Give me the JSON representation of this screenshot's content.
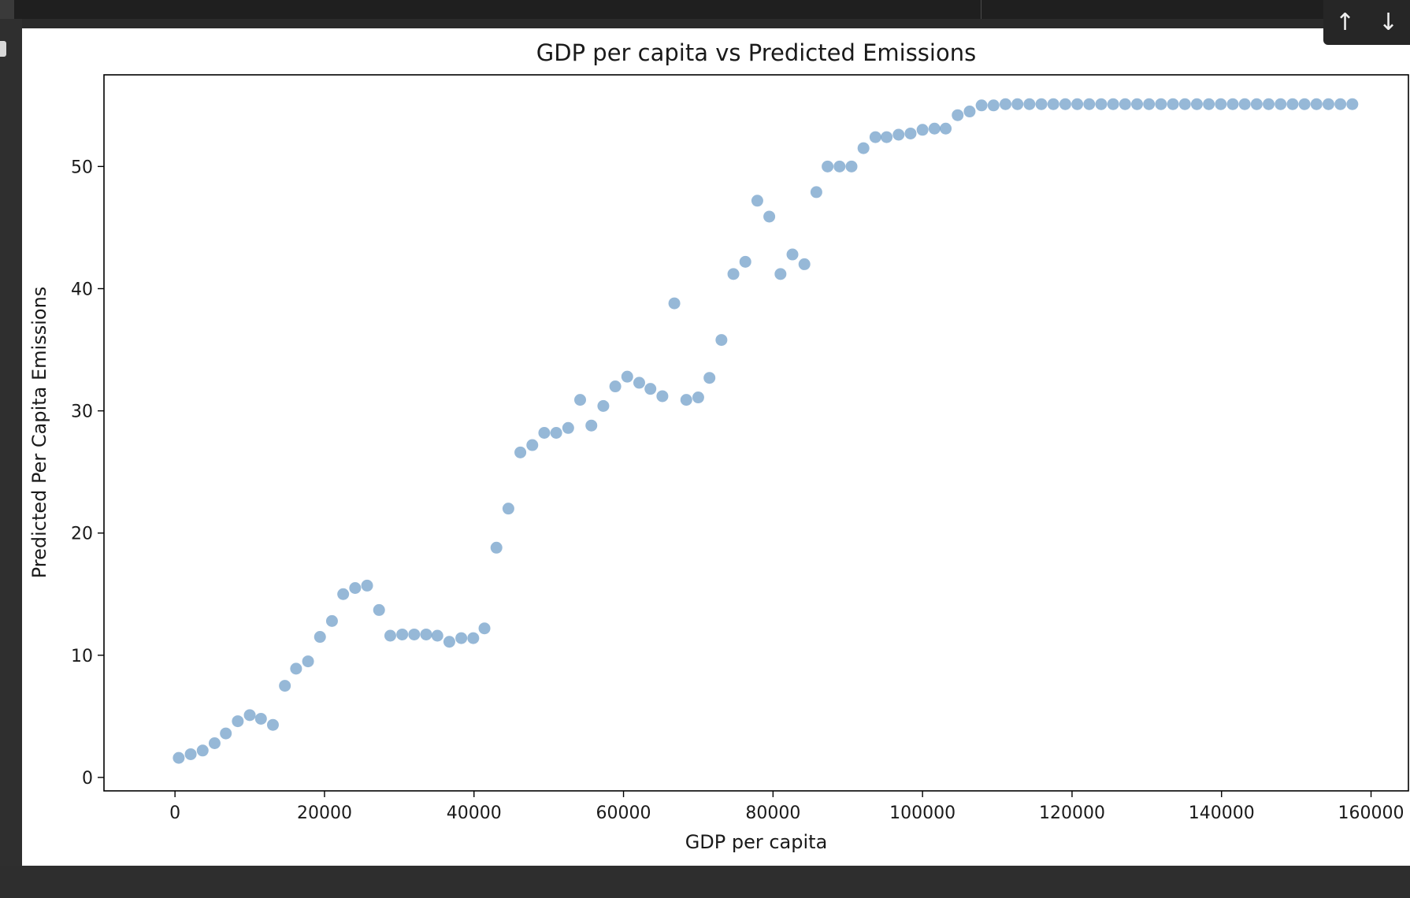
{
  "toolbar": {
    "move_up_icon": "arrow-up-icon",
    "move_up_glyph": "↑",
    "move_down_icon": "arrow-down-icon",
    "move_down_glyph": "↓"
  },
  "chart_data": {
    "type": "scatter",
    "title": "GDP per capita vs Predicted Emissions",
    "xlabel": "GDP per capita",
    "ylabel": "Predicted Per Capita Emissions",
    "xlim": [
      -9500,
      165000
    ],
    "ylim": [
      -1.1,
      57.5
    ],
    "xticks": [
      0,
      20000,
      40000,
      60000,
      80000,
      100000,
      120000,
      140000,
      160000
    ],
    "yticks": [
      0,
      10,
      20,
      30,
      40,
      50
    ],
    "grid": false,
    "legend": false,
    "marker_color": "#6a9ac6",
    "marker_alpha": 0.7,
    "points": [
      {
        "x": 500,
        "y": 1.6
      },
      {
        "x": 2100,
        "y": 1.9
      },
      {
        "x": 3700,
        "y": 2.2
      },
      {
        "x": 5300,
        "y": 2.8
      },
      {
        "x": 6800,
        "y": 3.6
      },
      {
        "x": 8400,
        "y": 4.6
      },
      {
        "x": 10000,
        "y": 5.1
      },
      {
        "x": 11500,
        "y": 4.8
      },
      {
        "x": 13100,
        "y": 4.3
      },
      {
        "x": 14700,
        "y": 7.5
      },
      {
        "x": 16200,
        "y": 8.9
      },
      {
        "x": 17800,
        "y": 9.5
      },
      {
        "x": 19400,
        "y": 11.5
      },
      {
        "x": 21000,
        "y": 12.8
      },
      {
        "x": 22500,
        "y": 15.0
      },
      {
        "x": 24100,
        "y": 15.5
      },
      {
        "x": 25700,
        "y": 15.7
      },
      {
        "x": 27300,
        "y": 13.7
      },
      {
        "x": 28800,
        "y": 11.6
      },
      {
        "x": 30400,
        "y": 11.7
      },
      {
        "x": 32000,
        "y": 11.7
      },
      {
        "x": 33600,
        "y": 11.7
      },
      {
        "x": 35100,
        "y": 11.6
      },
      {
        "x": 36700,
        "y": 11.1
      },
      {
        "x": 38300,
        "y": 11.4
      },
      {
        "x": 39900,
        "y": 11.4
      },
      {
        "x": 41400,
        "y": 12.2
      },
      {
        "x": 43000,
        "y": 18.8
      },
      {
        "x": 44600,
        "y": 22.0
      },
      {
        "x": 46200,
        "y": 26.6
      },
      {
        "x": 47800,
        "y": 27.2
      },
      {
        "x": 49400,
        "y": 28.2
      },
      {
        "x": 51000,
        "y": 28.2
      },
      {
        "x": 52600,
        "y": 28.6
      },
      {
        "x": 54200,
        "y": 30.9
      },
      {
        "x": 55700,
        "y": 28.8
      },
      {
        "x": 57300,
        "y": 30.4
      },
      {
        "x": 58900,
        "y": 32.0
      },
      {
        "x": 60500,
        "y": 32.8
      },
      {
        "x": 62100,
        "y": 32.3
      },
      {
        "x": 63600,
        "y": 31.8
      },
      {
        "x": 65200,
        "y": 31.2
      },
      {
        "x": 66800,
        "y": 38.8
      },
      {
        "x": 68400,
        "y": 30.9
      },
      {
        "x": 70000,
        "y": 31.1
      },
      {
        "x": 71500,
        "y": 32.7
      },
      {
        "x": 73100,
        "y": 35.8
      },
      {
        "x": 74700,
        "y": 41.2
      },
      {
        "x": 76300,
        "y": 42.2
      },
      {
        "x": 77900,
        "y": 47.2
      },
      {
        "x": 79500,
        "y": 45.9
      },
      {
        "x": 81000,
        "y": 41.2
      },
      {
        "x": 82600,
        "y": 42.8
      },
      {
        "x": 84200,
        "y": 42.0
      },
      {
        "x": 85800,
        "y": 47.9
      },
      {
        "x": 87300,
        "y": 50.0
      },
      {
        "x": 88900,
        "y": 50.0
      },
      {
        "x": 90500,
        "y": 50.0
      },
      {
        "x": 92100,
        "y": 51.5
      },
      {
        "x": 93700,
        "y": 52.4
      },
      {
        "x": 95200,
        "y": 52.4
      },
      {
        "x": 96800,
        "y": 52.6
      },
      {
        "x": 98400,
        "y": 52.7
      },
      {
        "x": 100000,
        "y": 53.0
      },
      {
        "x": 101600,
        "y": 53.1
      },
      {
        "x": 103100,
        "y": 53.1
      },
      {
        "x": 104700,
        "y": 54.2
      },
      {
        "x": 106300,
        "y": 54.5
      },
      {
        "x": 107900,
        "y": 55.0
      },
      {
        "x": 109500,
        "y": 55.0
      },
      {
        "x": 111100,
        "y": 55.1
      },
      {
        "x": 112700,
        "y": 55.1
      },
      {
        "x": 114300,
        "y": 55.1
      },
      {
        "x": 115900,
        "y": 55.1
      },
      {
        "x": 117500,
        "y": 55.1
      },
      {
        "x": 119100,
        "y": 55.1
      },
      {
        "x": 120700,
        "y": 55.1
      },
      {
        "x": 122300,
        "y": 55.1
      },
      {
        "x": 123900,
        "y": 55.1
      },
      {
        "x": 125500,
        "y": 55.1
      },
      {
        "x": 127100,
        "y": 55.1
      },
      {
        "x": 128700,
        "y": 55.1
      },
      {
        "x": 130300,
        "y": 55.1
      },
      {
        "x": 131900,
        "y": 55.1
      },
      {
        "x": 133500,
        "y": 55.1
      },
      {
        "x": 135100,
        "y": 55.1
      },
      {
        "x": 136700,
        "y": 55.1
      },
      {
        "x": 138300,
        "y": 55.1
      },
      {
        "x": 139900,
        "y": 55.1
      },
      {
        "x": 141500,
        "y": 55.1
      },
      {
        "x": 143100,
        "y": 55.1
      },
      {
        "x": 144700,
        "y": 55.1
      },
      {
        "x": 146300,
        "y": 55.1
      },
      {
        "x": 147900,
        "y": 55.1
      },
      {
        "x": 149500,
        "y": 55.1
      },
      {
        "x": 151100,
        "y": 55.1
      },
      {
        "x": 152700,
        "y": 55.1
      },
      {
        "x": 154300,
        "y": 55.1
      },
      {
        "x": 155900,
        "y": 55.1
      },
      {
        "x": 157500,
        "y": 55.1
      }
    ]
  }
}
